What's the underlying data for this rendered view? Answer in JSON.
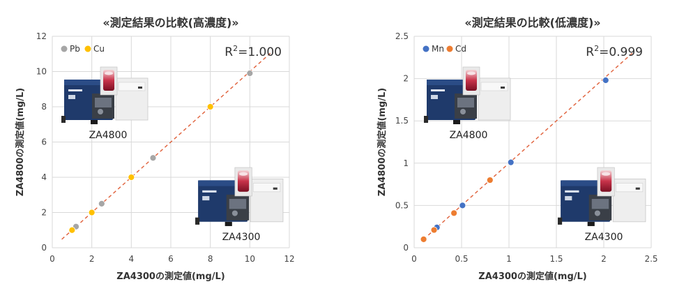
{
  "colors": {
    "pb": "#a6a6a6",
    "cu": "#ffc000",
    "mn": "#4472c4",
    "cd": "#ed7d31",
    "trend": "#e0603a",
    "grid": "#d9d9d9"
  },
  "chart_data": [
    {
      "type": "scatter",
      "title": "«測定結果の比較(高濃度)»",
      "xlabel": "ZA4300の測定値(mg/L)",
      "ylabel": "ZA4800の測定値(mg/L)",
      "xlim": [
        0,
        12
      ],
      "ylim": [
        0,
        12
      ],
      "xticks": [
        "0",
        "2",
        "4",
        "6",
        "8",
        "10",
        "12"
      ],
      "yticks": [
        "0",
        "2",
        "4",
        "6",
        "8",
        "10",
        "12"
      ],
      "grid": true,
      "legend_position": "top-left",
      "r2_label": "R",
      "r2_sup": "2",
      "r2_value": "=1.000",
      "instrument_labels": [
        "ZA4800",
        "ZA4300"
      ],
      "series": [
        {
          "name": "Pb",
          "color": "#a6a6a6",
          "points": [
            [
              1.2,
              1.2
            ],
            [
              2.5,
              2.5
            ],
            [
              5.1,
              5.1
            ],
            [
              10.0,
              9.9
            ]
          ]
        },
        {
          "name": "Cu",
          "color": "#ffc000",
          "points": [
            [
              1.0,
              1.0
            ],
            [
              2.0,
              2.0
            ],
            [
              4.0,
              4.0
            ],
            [
              8.0,
              8.0
            ]
          ]
        }
      ]
    },
    {
      "type": "scatter",
      "title": "«測定結果の比較(低濃度)»",
      "xlabel": "ZA4300の測定値(mg/L)",
      "ylabel": "ZA4800の測定値(mg/L)",
      "xlim": [
        0,
        2.5
      ],
      "ylim": [
        0,
        2.5
      ],
      "xticks": [
        "0",
        "0.5",
        "1",
        "1.5",
        "2",
        "2.5"
      ],
      "yticks": [
        "0",
        "0.5",
        "1",
        "1.5",
        "2",
        "2.5"
      ],
      "grid": true,
      "legend_position": "top-left",
      "r2_label": "R",
      "r2_sup": "2",
      "r2_value": "=0.999",
      "instrument_labels": [
        "ZA4800",
        "ZA4300"
      ],
      "series": [
        {
          "name": "Mn",
          "color": "#4472c4",
          "points": [
            [
              0.24,
              0.24
            ],
            [
              0.51,
              0.5
            ],
            [
              1.02,
              1.01
            ],
            [
              2.02,
              1.98
            ]
          ]
        },
        {
          "name": "Cd",
          "color": "#ed7d31",
          "points": [
            [
              0.1,
              0.1
            ],
            [
              0.21,
              0.21
            ],
            [
              0.42,
              0.41
            ],
            [
              0.8,
              0.8
            ]
          ]
        }
      ]
    }
  ]
}
